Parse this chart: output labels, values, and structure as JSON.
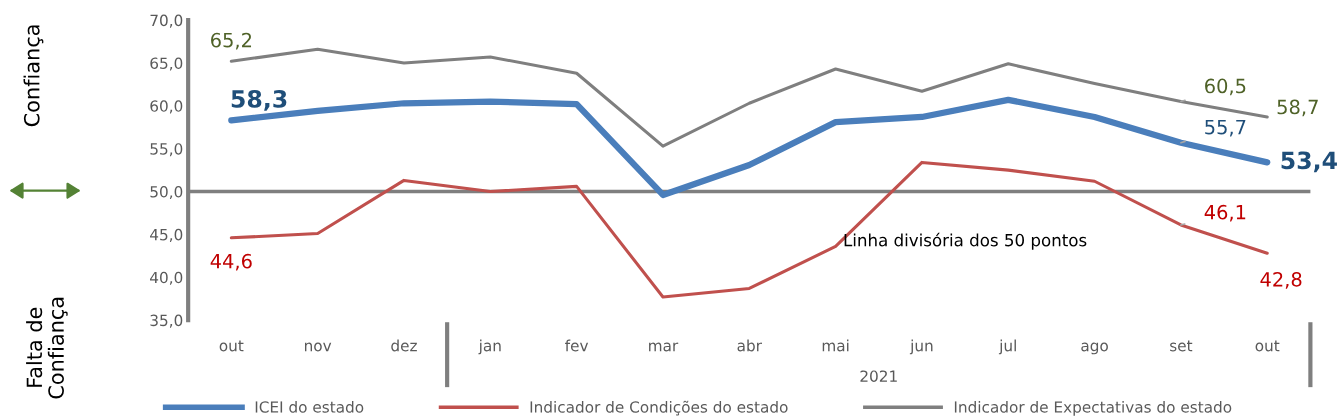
{
  "chart_data": {
    "type": "line",
    "xlabel": "2021",
    "categories": [
      "out",
      "nov",
      "dez",
      "jan",
      "fev",
      "mar",
      "abr",
      "mai",
      "jun",
      "jul",
      "ago",
      "set",
      "out"
    ],
    "series": [
      {
        "name": "ICEI do estado",
        "color": "#4a7ebb",
        "values": [
          58.3,
          59.4,
          60.3,
          60.5,
          60.2,
          49.6,
          53.1,
          58.1,
          58.7,
          60.7,
          58.7,
          55.7,
          53.4
        ],
        "value_labels": [
          "58,3",
          null,
          null,
          null,
          null,
          null,
          null,
          null,
          null,
          null,
          null,
          "55,7",
          "53,4"
        ]
      },
      {
        "name": "Indicador de Condições do estado",
        "color": "#c0504d",
        "values": [
          44.6,
          45.1,
          51.3,
          50.0,
          50.6,
          37.7,
          38.7,
          43.6,
          53.4,
          52.5,
          51.2,
          46.1,
          42.8
        ],
        "value_labels": [
          "44,6",
          null,
          null,
          null,
          null,
          null,
          null,
          null,
          null,
          null,
          null,
          "46,1",
          "42,8"
        ]
      },
      {
        "name": "Indicador de Expectativas do estado",
        "color": "#7f7f7f",
        "values": [
          65.2,
          66.6,
          65.0,
          65.7,
          63.8,
          55.3,
          60.3,
          64.3,
          61.7,
          64.9,
          62.6,
          60.5,
          58.7
        ],
        "value_labels": [
          "65,2",
          null,
          null,
          null,
          null,
          null,
          null,
          null,
          null,
          null,
          null,
          "60,5",
          "58,7"
        ]
      }
    ],
    "ylim": [
      35,
      70
    ],
    "yticks": [
      {
        "value": 35,
        "label": "35,0"
      },
      {
        "value": 40,
        "label": "40,0"
      },
      {
        "value": 45,
        "label": "45,0"
      },
      {
        "value": 50,
        "label": "50,0"
      },
      {
        "value": 55,
        "label": "55,0"
      },
      {
        "value": 60,
        "label": "60,0"
      },
      {
        "value": 65,
        "label": "65,0"
      },
      {
        "value": 70,
        "label": "70,0"
      }
    ],
    "ref_lines": [
      {
        "axis": "y",
        "value": 50,
        "color": "#7f7f7f"
      }
    ],
    "annotations": [
      "Linha divisória dos 50 pontos",
      "Confiança",
      "Falta de Confiança"
    ],
    "grid": false,
    "legend": "bottom",
    "marker": "none",
    "line_style": "solid"
  }
}
